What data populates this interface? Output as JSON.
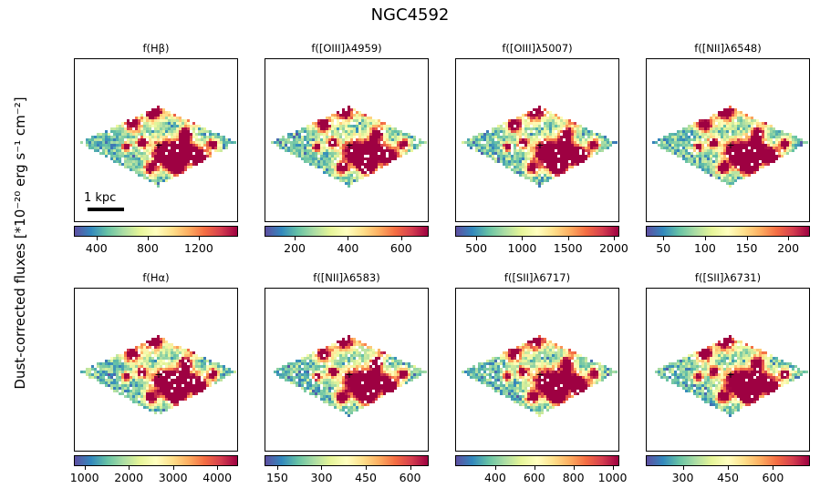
{
  "figure": {
    "title": "NGC4592",
    "ylabel": "Dust-corrected fluxes [*10⁻²⁰ erg s⁻¹ cm⁻²]",
    "scalebar_label": "1 kpc"
  },
  "colormap": [
    "#5e4fa2",
    "#3288bd",
    "#66c2a5",
    "#abdda4",
    "#e6f598",
    "#ffffbf",
    "#fee08b",
    "#fdae61",
    "#f46d43",
    "#d53e4f",
    "#9e0142"
  ],
  "chart_data": [
    {
      "type": "heatmap",
      "title": "f(Hβ)",
      "colorbar": {
        "min": 230,
        "max": 1500,
        "ticks": [
          400,
          800,
          1200
        ],
        "tick_labels": [
          "400",
          "800",
          "1200"
        ]
      }
    },
    {
      "type": "heatmap",
      "title": "f([OIII]λ4959)",
      "colorbar": {
        "min": 90,
        "max": 700,
        "ticks": [
          200,
          400,
          600
        ],
        "tick_labels": [
          "200",
          "400",
          "600"
        ]
      }
    },
    {
      "type": "heatmap",
      "title": "f([OIII]λ5007)",
      "colorbar": {
        "min": 280,
        "max": 2050,
        "ticks": [
          500,
          1000,
          1500,
          2000
        ],
        "tick_labels": [
          "500",
          "1000",
          "1500",
          "2000"
        ]
      }
    },
    {
      "type": "heatmap",
      "title": "f([NII]λ6548)",
      "colorbar": {
        "min": 30,
        "max": 225,
        "ticks": [
          50,
          100,
          150,
          200
        ],
        "tick_labels": [
          "50",
          "100",
          "150",
          "200"
        ]
      }
    },
    {
      "type": "heatmap",
      "title": "f(Hα)",
      "colorbar": {
        "min": 780,
        "max": 4450,
        "ticks": [
          1000,
          2000,
          3000,
          4000
        ],
        "tick_labels": [
          "1000",
          "2000",
          "3000",
          "4000"
        ]
      }
    },
    {
      "type": "heatmap",
      "title": "f([NII]λ6583)",
      "colorbar": {
        "min": 110,
        "max": 660,
        "ticks": [
          150,
          300,
          450,
          600
        ],
        "tick_labels": [
          "150",
          "300",
          "450",
          "600"
        ]
      }
    },
    {
      "type": "heatmap",
      "title": "f([SII]λ6717)",
      "colorbar": {
        "min": 200,
        "max": 1030,
        "ticks": [
          400,
          600,
          800,
          1000
        ],
        "tick_labels": [
          "400",
          "600",
          "800",
          "1000"
        ]
      }
    },
    {
      "type": "heatmap",
      "title": "f([SII]λ6731)",
      "colorbar": {
        "min": 180,
        "max": 720,
        "ticks": [
          300,
          450,
          600
        ],
        "tick_labels": [
          "300",
          "450",
          "600"
        ]
      }
    }
  ]
}
